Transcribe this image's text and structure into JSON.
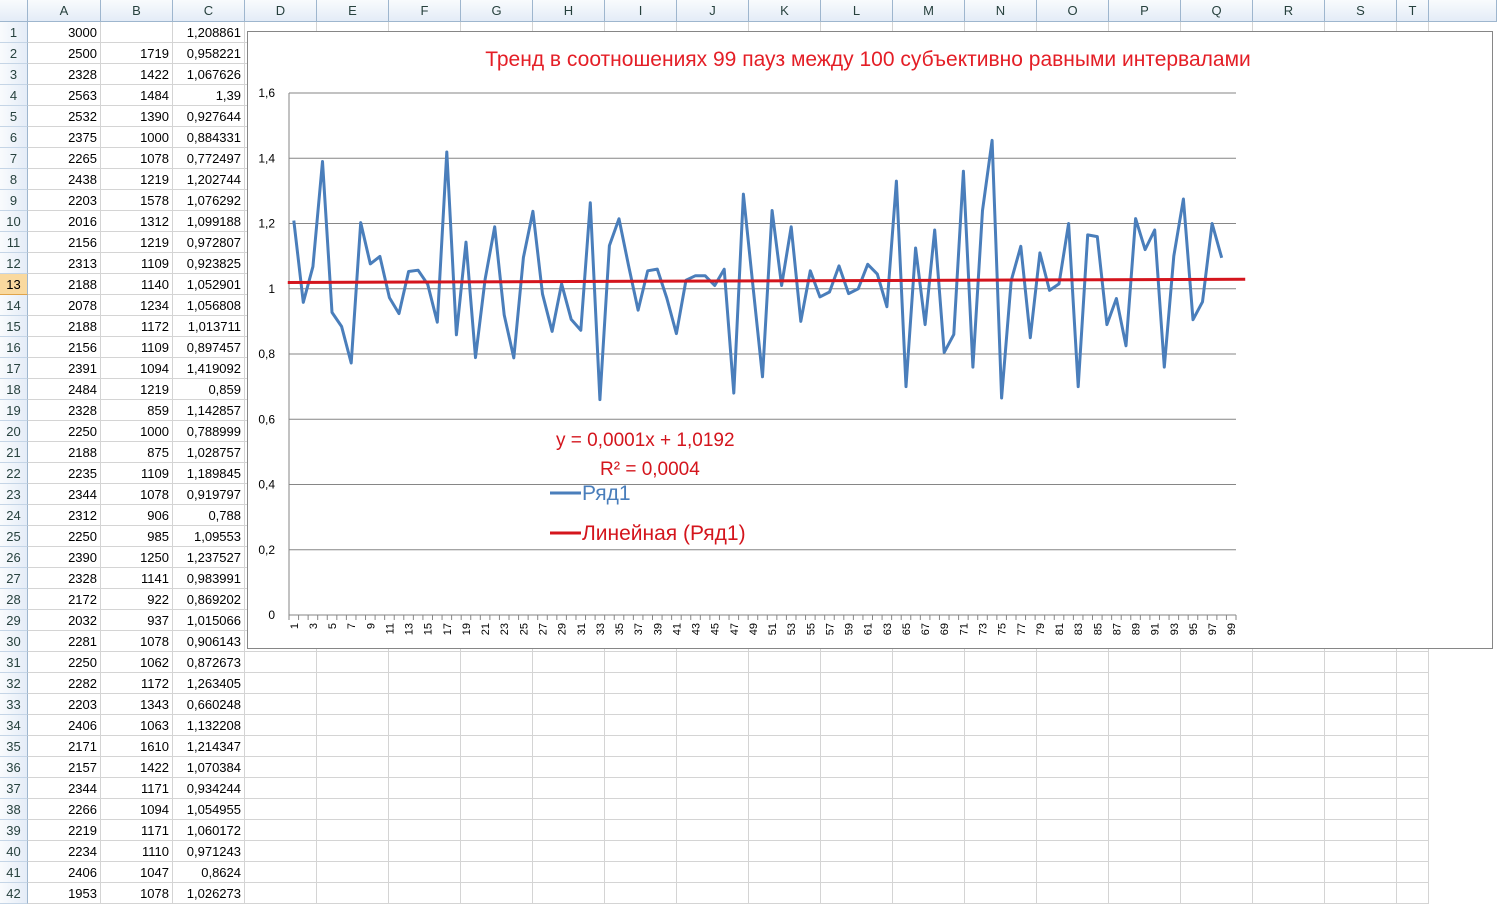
{
  "columns": [
    "A",
    "B",
    "C",
    "D",
    "E",
    "F",
    "G",
    "H",
    "I",
    "J",
    "K",
    "L",
    "M",
    "N",
    "O",
    "P",
    "Q",
    "R",
    "S",
    "T"
  ],
  "selected_row": 13,
  "rows": [
    {
      "n": "1",
      "a": "3000",
      "b": "",
      "c": "1,208861"
    },
    {
      "n": "2",
      "a": "2500",
      "b": "1719",
      "c": "0,958221"
    },
    {
      "n": "3",
      "a": "2328",
      "b": "1422",
      "c": "1,067626"
    },
    {
      "n": "4",
      "a": "2563",
      "b": "1484",
      "c": "1,39"
    },
    {
      "n": "5",
      "a": "2532",
      "b": "1390",
      "c": "0,927644"
    },
    {
      "n": "6",
      "a": "2375",
      "b": "1000",
      "c": "0,884331"
    },
    {
      "n": "7",
      "a": "2265",
      "b": "1078",
      "c": "0,772497"
    },
    {
      "n": "8",
      "a": "2438",
      "b": "1219",
      "c": "1,202744"
    },
    {
      "n": "9",
      "a": "2203",
      "b": "1578",
      "c": "1,076292"
    },
    {
      "n": "10",
      "a": "2016",
      "b": "1312",
      "c": "1,099188"
    },
    {
      "n": "11",
      "a": "2156",
      "b": "1219",
      "c": "0,972807"
    },
    {
      "n": "12",
      "a": "2313",
      "b": "1109",
      "c": "0,923825"
    },
    {
      "n": "13",
      "a": "2188",
      "b": "1140",
      "c": "1,052901"
    },
    {
      "n": "14",
      "a": "2078",
      "b": "1234",
      "c": "1,056808"
    },
    {
      "n": "15",
      "a": "2188",
      "b": "1172",
      "c": "1,013711"
    },
    {
      "n": "16",
      "a": "2156",
      "b": "1109",
      "c": "0,897457"
    },
    {
      "n": "17",
      "a": "2391",
      "b": "1094",
      "c": "1,419092"
    },
    {
      "n": "18",
      "a": "2484",
      "b": "1219",
      "c": "0,859"
    },
    {
      "n": "19",
      "a": "2328",
      "b": "859",
      "c": "1,142857"
    },
    {
      "n": "20",
      "a": "2250",
      "b": "1000",
      "c": "0,788999"
    },
    {
      "n": "21",
      "a": "2188",
      "b": "875",
      "c": "1,028757"
    },
    {
      "n": "22",
      "a": "2235",
      "b": "1109",
      "c": "1,189845"
    },
    {
      "n": "23",
      "a": "2344",
      "b": "1078",
      "c": "0,919797"
    },
    {
      "n": "24",
      "a": "2312",
      "b": "906",
      "c": "0,788"
    },
    {
      "n": "25",
      "a": "2250",
      "b": "985",
      "c": "1,09553"
    },
    {
      "n": "26",
      "a": "2390",
      "b": "1250",
      "c": "1,237527"
    },
    {
      "n": "27",
      "a": "2328",
      "b": "1141",
      "c": "0,983991"
    },
    {
      "n": "28",
      "a": "2172",
      "b": "922",
      "c": "0,869202"
    },
    {
      "n": "29",
      "a": "2032",
      "b": "937",
      "c": "1,015066"
    },
    {
      "n": "30",
      "a": "2281",
      "b": "1078",
      "c": "0,906143"
    },
    {
      "n": "31",
      "a": "2250",
      "b": "1062",
      "c": "0,872673"
    },
    {
      "n": "32",
      "a": "2282",
      "b": "1172",
      "c": "1,263405"
    },
    {
      "n": "33",
      "a": "2203",
      "b": "1343",
      "c": "0,660248"
    },
    {
      "n": "34",
      "a": "2406",
      "b": "1063",
      "c": "1,132208"
    },
    {
      "n": "35",
      "a": "2171",
      "b": "1610",
      "c": "1,214347"
    },
    {
      "n": "36",
      "a": "2157",
      "b": "1422",
      "c": "1,070384"
    },
    {
      "n": "37",
      "a": "2344",
      "b": "1171",
      "c": "0,934244"
    },
    {
      "n": "38",
      "a": "2266",
      "b": "1094",
      "c": "1,054955"
    },
    {
      "n": "39",
      "a": "2219",
      "b": "1171",
      "c": "1,060172"
    },
    {
      "n": "40",
      "a": "2234",
      "b": "1110",
      "c": "0,971243"
    },
    {
      "n": "41",
      "a": "2406",
      "b": "1047",
      "c": "0,8624"
    },
    {
      "n": "42",
      "a": "1953",
      "b": "1078",
      "c": "1,026273"
    }
  ],
  "chart_data": {
    "type": "line",
    "title": "Тренд в соотношениях  99 пауз между 100 субъективно равными интервалами",
    "xlabel": "",
    "ylabel": "",
    "ylim": [
      0,
      1.6
    ],
    "y_ticks": [
      "0",
      "0,2",
      "0,4",
      "0,6",
      "0,8",
      "1",
      "1,2",
      "1,4",
      "1,6"
    ],
    "x_ticks": [
      "1",
      "3",
      "5",
      "7",
      "9",
      "11",
      "13",
      "15",
      "17",
      "19",
      "21",
      "23",
      "25",
      "27",
      "29",
      "31",
      "33",
      "35",
      "37",
      "39",
      "41",
      "43",
      "45",
      "47",
      "49",
      "51",
      "53",
      "55",
      "57",
      "59",
      "61",
      "63",
      "65",
      "67",
      "69",
      "71",
      "73",
      "75",
      "77",
      "79",
      "81",
      "83",
      "85",
      "87",
      "89",
      "91",
      "93",
      "95",
      "97",
      "99"
    ],
    "grid": true,
    "legend_position": "inside-bottom-left",
    "series": [
      {
        "name": "Ряд1",
        "color": "#4a7ebb",
        "x_range": [
          1,
          98
        ],
        "values": [
          1.208861,
          0.958221,
          1.067626,
          1.39,
          0.927644,
          0.884331,
          0.772497,
          1.202744,
          1.076292,
          1.099188,
          0.972807,
          0.923825,
          1.052901,
          1.056808,
          1.013711,
          0.897457,
          1.419092,
          0.859,
          1.142857,
          0.788999,
          1.028757,
          1.189845,
          0.919797,
          0.788,
          1.09553,
          1.237527,
          0.983991,
          0.869202,
          1.015066,
          0.906143,
          0.872673,
          1.263405,
          0.660248,
          1.132208,
          1.214347,
          1.070384,
          0.934244,
          1.054955,
          1.060172,
          0.971243,
          0.8624,
          1.026273,
          1.04,
          1.04,
          1.01,
          1.06,
          0.68,
          1.29,
          1.01,
          0.73,
          1.24,
          1.01,
          1.19,
          0.9,
          1.055,
          0.975,
          0.99,
          1.07,
          0.985,
          1.0,
          1.075,
          1.045,
          0.945,
          1.33,
          0.7,
          1.125,
          0.89,
          1.18,
          0.805,
          0.86,
          1.36,
          0.76,
          1.24,
          1.455,
          0.665,
          1.025,
          1.13,
          0.85,
          1.11,
          0.995,
          1.015,
          1.2,
          0.7,
          1.165,
          1.16,
          0.89,
          0.97,
          0.825,
          1.215,
          1.12,
          1.18,
          0.76,
          1.1,
          1.275,
          0.905,
          0.96,
          1.2,
          1.095
        ]
      },
      {
        "name": "Линейная (Ряд1)",
        "color": "#d4151d",
        "trend": {
          "slope": 0.0001,
          "intercept": 1.0192
        },
        "x_range": [
          1,
          99
        ]
      }
    ],
    "annotations": [
      "y = 0,0001x + 1,0192",
      "R² = 0,0004"
    ]
  }
}
